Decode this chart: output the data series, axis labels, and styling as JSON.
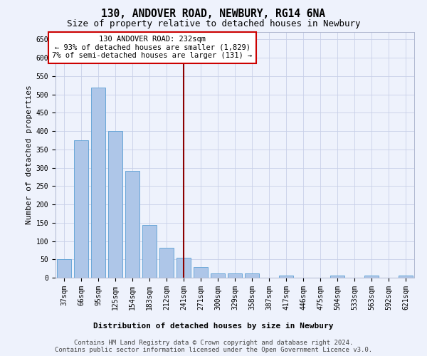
{
  "title": "130, ANDOVER ROAD, NEWBURY, RG14 6NA",
  "subtitle": "Size of property relative to detached houses in Newbury",
  "xlabel": "Distribution of detached houses by size in Newbury",
  "ylabel": "Number of detached properties",
  "categories": [
    "37sqm",
    "66sqm",
    "95sqm",
    "125sqm",
    "154sqm",
    "183sqm",
    "212sqm",
    "241sqm",
    "271sqm",
    "300sqm",
    "329sqm",
    "358sqm",
    "387sqm",
    "417sqm",
    "446sqm",
    "475sqm",
    "504sqm",
    "533sqm",
    "563sqm",
    "592sqm",
    "621sqm"
  ],
  "values": [
    50,
    375,
    518,
    400,
    291,
    143,
    82,
    55,
    29,
    11,
    11,
    12,
    0,
    5,
    0,
    0,
    6,
    0,
    5,
    0,
    5
  ],
  "bar_color": "#aec6e8",
  "bar_edge_color": "#5a9fd4",
  "vline_x": 7,
  "vline_color": "#8b0000",
  "annotation_text": "130 ANDOVER ROAD: 232sqm\n← 93% of detached houses are smaller (1,829)\n7% of semi-detached houses are larger (131) →",
  "annotation_box_color": "#ffffff",
  "annotation_box_edge_color": "#cc0000",
  "ylim": [
    0,
    670
  ],
  "yticks": [
    0,
    50,
    100,
    150,
    200,
    250,
    300,
    350,
    400,
    450,
    500,
    550,
    600,
    650
  ],
  "footer_line1": "Contains HM Land Registry data © Crown copyright and database right 2024.",
  "footer_line2": "Contains public sector information licensed under the Open Government Licence v3.0.",
  "background_color": "#eef2fc",
  "grid_color": "#c8d0e8",
  "title_fontsize": 10.5,
  "subtitle_fontsize": 9,
  "axis_label_fontsize": 8,
  "tick_fontsize": 7,
  "annotation_fontsize": 7.5,
  "footer_fontsize": 6.5
}
